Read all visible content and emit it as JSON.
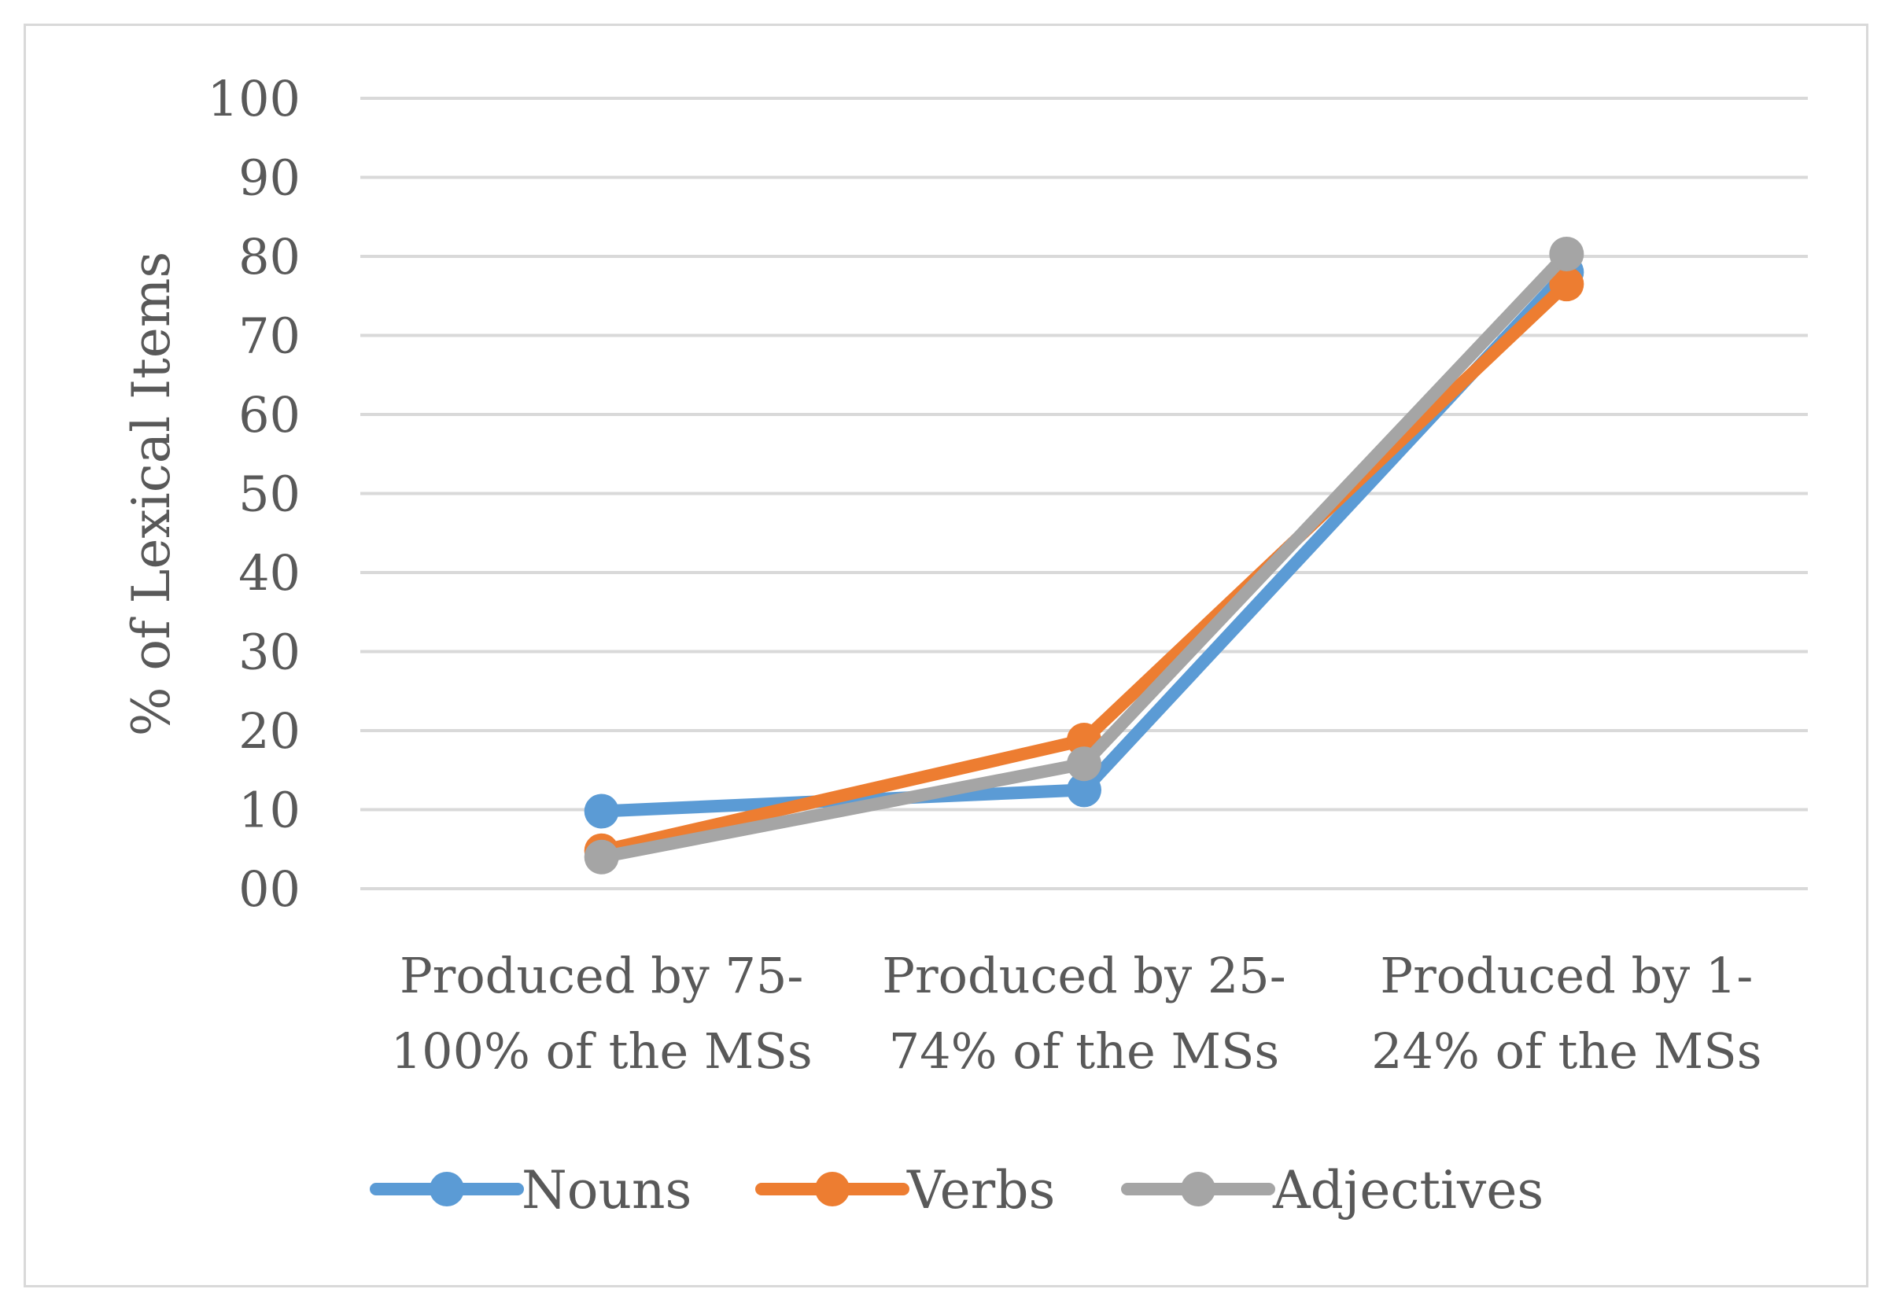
{
  "chart_data": {
    "type": "line",
    "title": "",
    "xlabel": "",
    "ylabel": "% of Lexical Items",
    "ylim": [
      0,
      100
    ],
    "yticks": [
      "00",
      "10",
      "20",
      "30",
      "40",
      "50",
      "60",
      "70",
      "80",
      "90",
      "100"
    ],
    "ytick_values": [
      0,
      10,
      20,
      30,
      40,
      50,
      60,
      70,
      80,
      90,
      100
    ],
    "grid": true,
    "legend_position": "bottom",
    "categories": [
      [
        "Produced by 75-",
        "100% of the MSs"
      ],
      [
        "Produced by 25-",
        "74% of the MSs"
      ],
      [
        "Produced by 1-",
        "24% of the MSs"
      ]
    ],
    "series": [
      {
        "name": "Nouns",
        "color": "#5b9bd5",
        "values": [
          9.8,
          12.5,
          78
        ]
      },
      {
        "name": "Verbs",
        "color": "#ed7d31",
        "values": [
          4.8,
          18.8,
          76.5
        ]
      },
      {
        "name": "Adjectives",
        "color": "#a5a5a5",
        "values": [
          4.0,
          15.8,
          80.3
        ]
      }
    ],
    "gridline_color": "#d9d9d9"
  }
}
